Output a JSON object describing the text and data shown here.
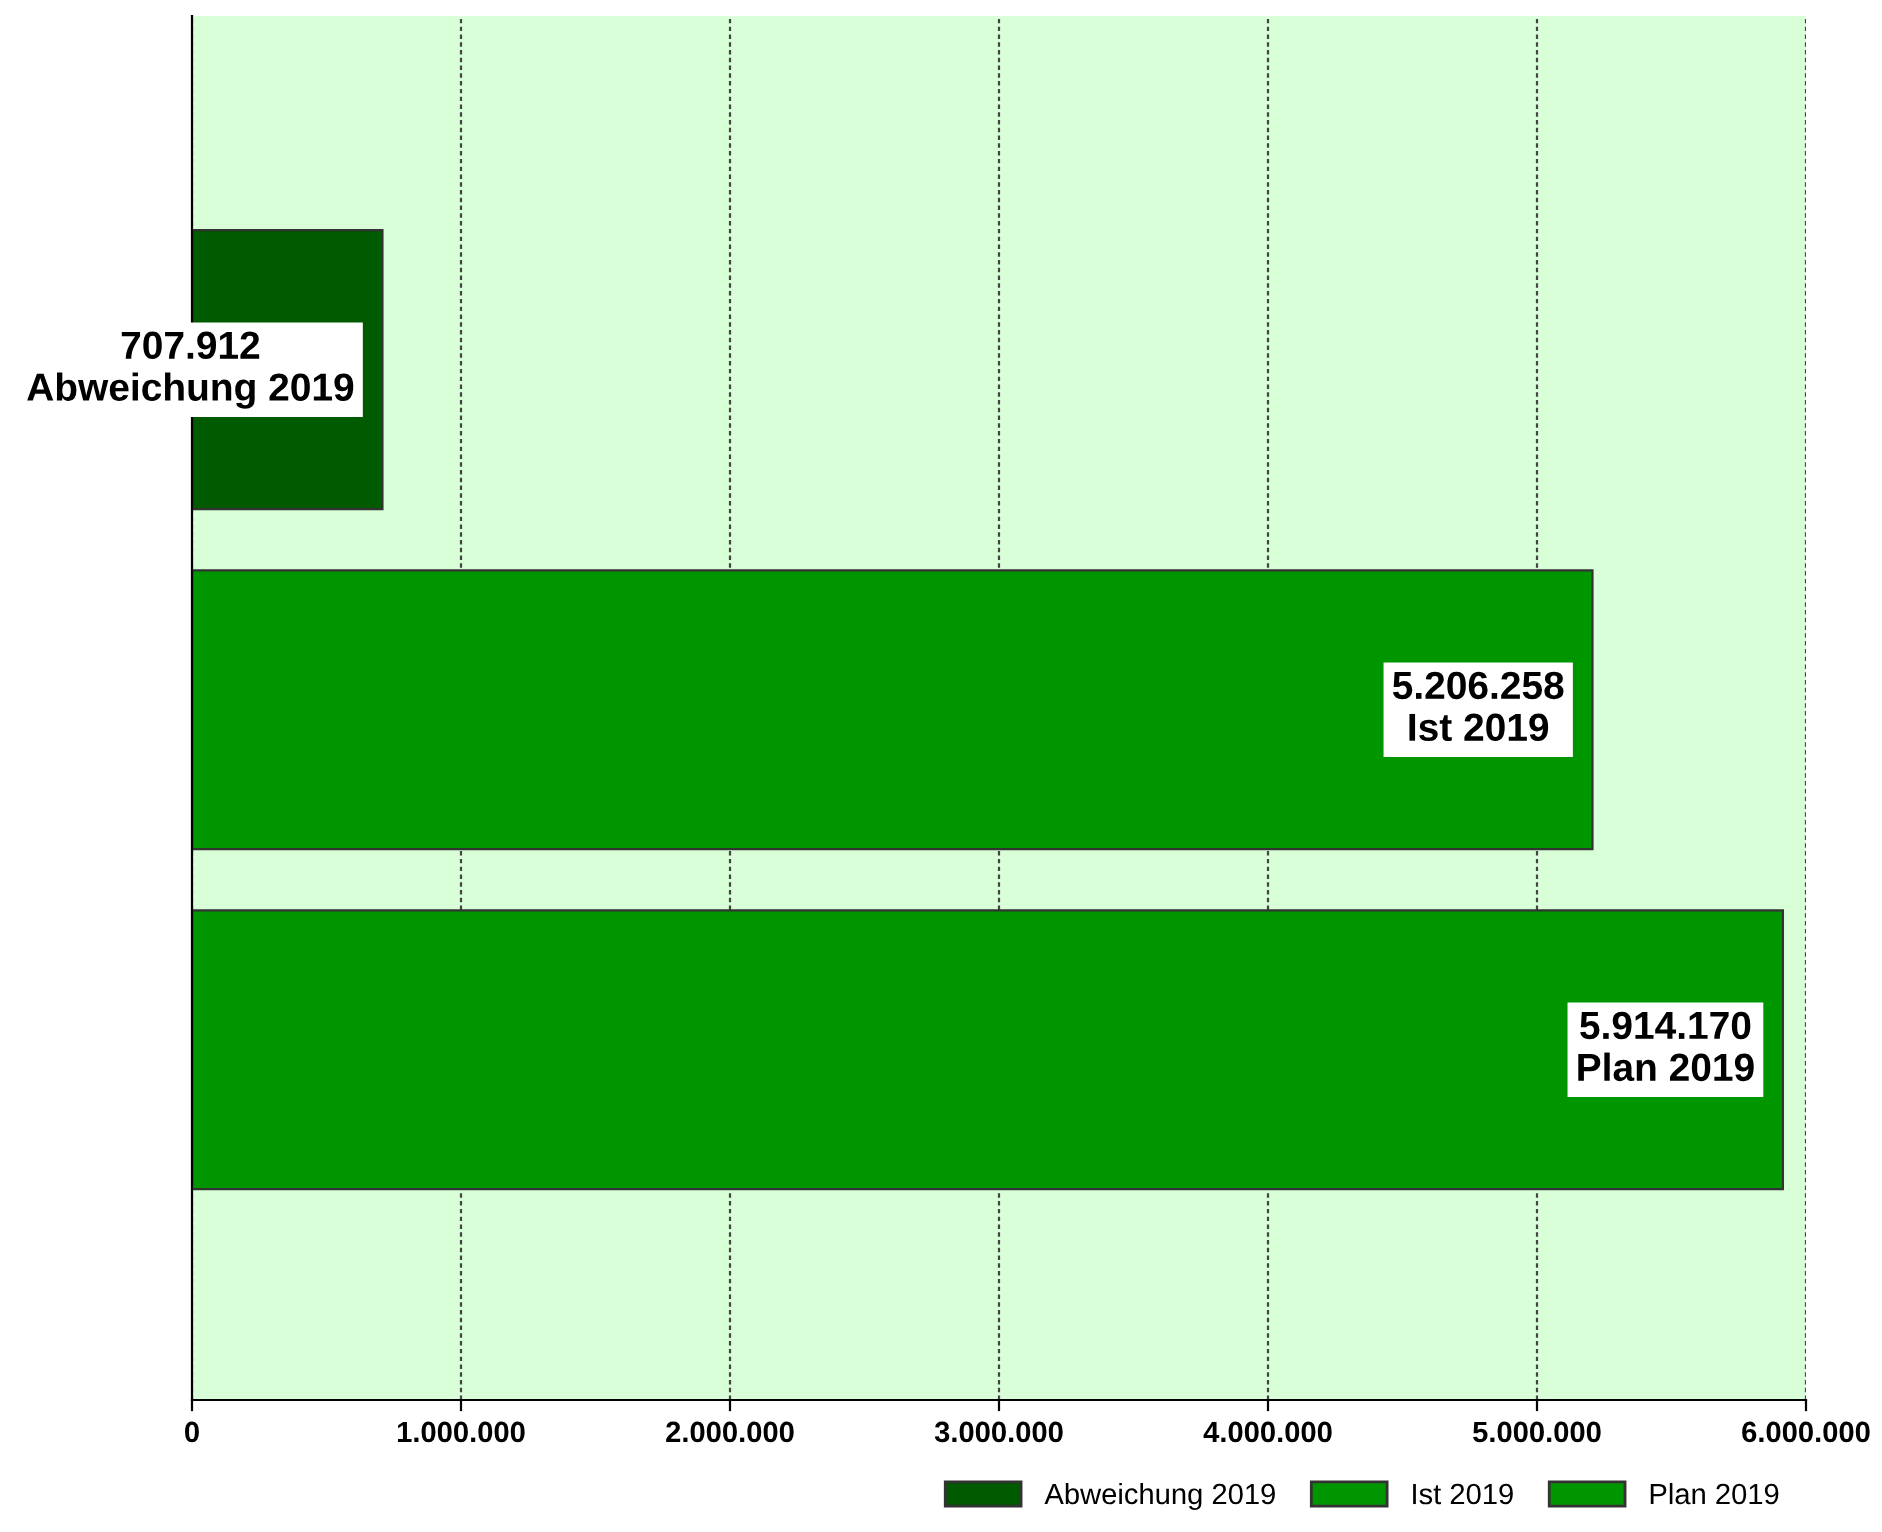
{
  "chart_data": {
    "type": "bar",
    "orientation": "horizontal",
    "categories": [
      null,
      null,
      null
    ],
    "series": [
      {
        "name": "Abweichung 2019",
        "color": "#005a00",
        "values": [
          707912,
          null,
          null
        ],
        "value_labels": [
          "707.912\nAbweichung 2019",
          null,
          null
        ]
      },
      {
        "name": "Ist 2019",
        "color": "#009600",
        "values": [
          null,
          5206258,
          null
        ],
        "value_labels": [
          null,
          "5.206.258\nIst 2019",
          null
        ]
      },
      {
        "name": "Plan 2019",
        "color": "#009600",
        "values": [
          null,
          null,
          5914170
        ],
        "value_labels": [
          null,
          null,
          "5.914.170\nPlan 2019"
        ]
      }
    ],
    "xlim": [
      0,
      6000000
    ],
    "xticks": [
      0,
      {
        "value": 1000000,
        "label": "1.000.000"
      },
      {
        "value": 2000000,
        "label": "2.000.000"
      },
      {
        "value": 3000000,
        "label": "3.000.000"
      },
      {
        "value": 4000000,
        "label": "4.000.000"
      },
      {
        "value": 5000000,
        "label": "5.000.000"
      },
      {
        "value": 6000000,
        "label": "6.000.000"
      }
    ],
    "grid": "x",
    "legend": "bottom right"
  }
}
